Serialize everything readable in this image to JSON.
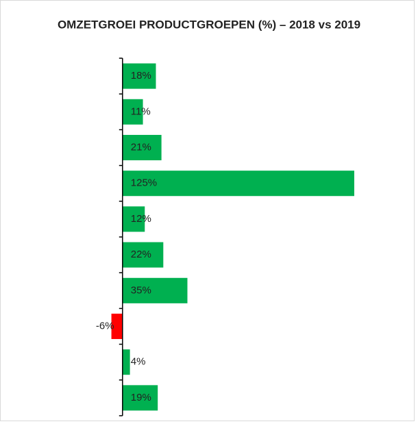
{
  "chart_data": {
    "type": "barh",
    "title": "OMZETGROEI PRODUCTGROEPEN (%) – 2018 vs 2019",
    "categories": [
      null,
      null,
      null,
      null,
      null,
      null,
      null,
      null,
      null,
      null
    ],
    "values": [
      18,
      11,
      21,
      125,
      12,
      22,
      35,
      -6,
      4,
      19
    ],
    "value_labels": [
      "18%",
      "11%",
      "21%",
      "125%",
      "12%",
      "22%",
      "35%",
      "-6%",
      "4%",
      "19%"
    ],
    "colors": [
      "#00b050",
      "#00b050",
      "#00b050",
      "#00b050",
      "#00b050",
      "#00b050",
      "#00b050",
      "#ff0000",
      "#00b050",
      "#00b050"
    ],
    "xlim": [
      -55,
      150
    ]
  }
}
